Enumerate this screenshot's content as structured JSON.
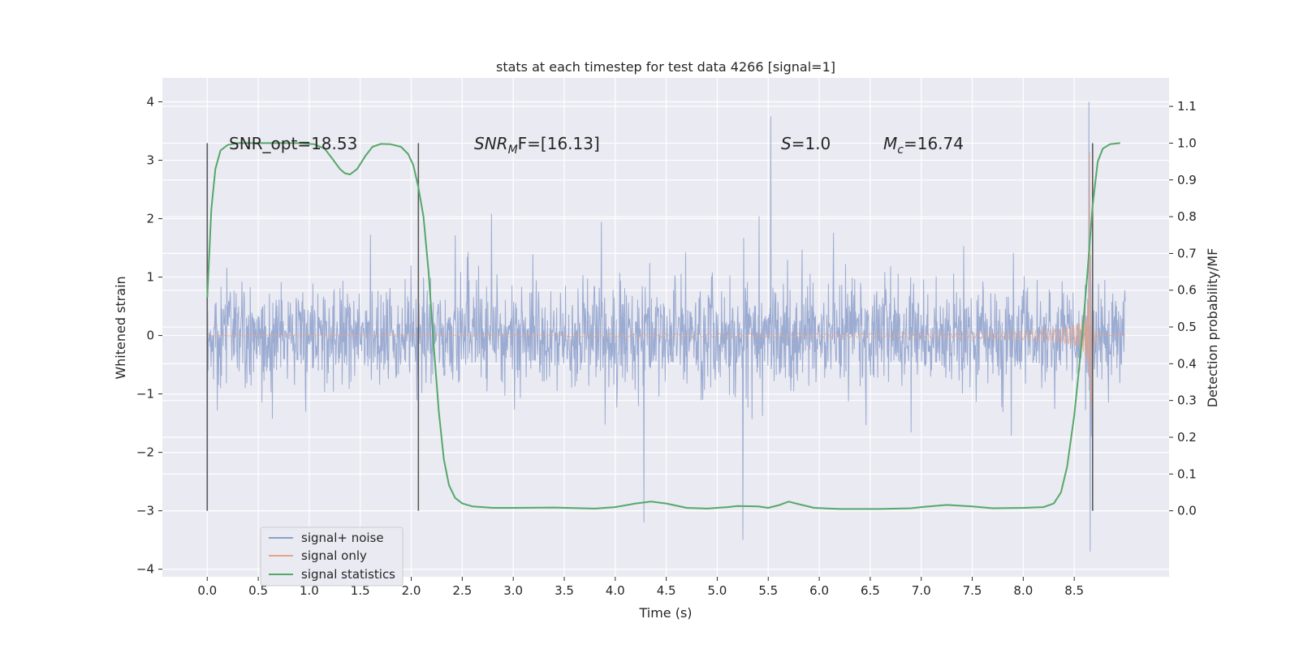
{
  "chart_data": {
    "type": "line",
    "title": "stats at each timestep for test data 4266 [signal=1]",
    "xlabel": "Time (s)",
    "ylabel_left": "Whitened strain",
    "ylabel_right": "Detection probability/MF",
    "xlim": [
      -0.44,
      9.43
    ],
    "ylim_left": [
      -4.13,
      4.41
    ],
    "ylim_right": [
      -0.1795,
      1.1775
    ],
    "x_ticks": [
      0.0,
      0.5,
      1.0,
      1.5,
      2.0,
      2.5,
      3.0,
      3.5,
      4.0,
      4.5,
      5.0,
      5.5,
      6.0,
      6.5,
      7.0,
      7.5,
      8.0,
      8.5
    ],
    "x_tick_labels": [
      "0.0",
      "0.5",
      "1.0",
      "1.5",
      "2.0",
      "2.5",
      "3.0",
      "3.5",
      "4.0",
      "4.5",
      "5.0",
      "5.5",
      "6.0",
      "6.5",
      "7.0",
      "7.5",
      "8.0",
      "8.5"
    ],
    "y_left_ticks": [
      -4,
      -3,
      -2,
      -1,
      0,
      1,
      2,
      3,
      4
    ],
    "y_left_tick_labels": [
      "−4",
      "−3",
      "−2",
      "−1",
      "0",
      "1",
      "2",
      "3",
      "4"
    ],
    "y_right_ticks": [
      0.0,
      0.1,
      0.2,
      0.3,
      0.4,
      0.5,
      0.6,
      0.7,
      0.8,
      0.9,
      1.0,
      1.1
    ],
    "y_right_tick_labels": [
      "0.0",
      "0.1",
      "0.2",
      "0.3",
      "0.4",
      "0.5",
      "0.6",
      "0.7",
      "0.8",
      "0.9",
      "1.0",
      "1.1"
    ],
    "grid": true,
    "legend_position": "bottom-left",
    "series": [
      {
        "name": "signal+ noise",
        "axis": "left",
        "color": "#8da0cb",
        "x_range": [
          0.0,
          9.0
        ],
        "noise_sigma": 0.8,
        "peak_range": [
          -3.7,
          4.0
        ]
      },
      {
        "name": "signal only",
        "axis": "left",
        "color": "#e5a48a",
        "x_range": [
          0.0,
          9.0
        ],
        "merger_time": 8.65,
        "peak_amplitude": 3.2
      },
      {
        "name": "signal statistics",
        "axis": "right",
        "color": "#55a868",
        "points": [
          [
            0.0,
            0.58
          ],
          [
            0.04,
            0.82
          ],
          [
            0.08,
            0.93
          ],
          [
            0.13,
            0.98
          ],
          [
            0.2,
            0.995
          ],
          [
            0.3,
            1.0
          ],
          [
            0.6,
            1.0
          ],
          [
            0.9,
            1.0
          ],
          [
            1.05,
            0.997
          ],
          [
            1.15,
            0.985
          ],
          [
            1.22,
            0.96
          ],
          [
            1.3,
            0.93
          ],
          [
            1.35,
            0.918
          ],
          [
            1.4,
            0.915
          ],
          [
            1.47,
            0.93
          ],
          [
            1.55,
            0.965
          ],
          [
            1.62,
            0.99
          ],
          [
            1.7,
            0.998
          ],
          [
            1.8,
            0.997
          ],
          [
            1.9,
            0.99
          ],
          [
            1.97,
            0.97
          ],
          [
            2.02,
            0.94
          ],
          [
            2.07,
            0.88
          ],
          [
            2.12,
            0.8
          ],
          [
            2.17,
            0.65
          ],
          [
            2.22,
            0.45
          ],
          [
            2.27,
            0.27
          ],
          [
            2.32,
            0.14
          ],
          [
            2.37,
            0.07
          ],
          [
            2.43,
            0.035
          ],
          [
            2.5,
            0.02
          ],
          [
            2.6,
            0.012
          ],
          [
            2.8,
            0.008
          ],
          [
            3.0,
            0.008
          ],
          [
            3.4,
            0.009
          ],
          [
            3.8,
            0.006
          ],
          [
            4.0,
            0.01
          ],
          [
            4.2,
            0.02
          ],
          [
            4.35,
            0.025
          ],
          [
            4.5,
            0.02
          ],
          [
            4.7,
            0.008
          ],
          [
            4.9,
            0.006
          ],
          [
            5.1,
            0.01
          ],
          [
            5.2,
            0.013
          ],
          [
            5.4,
            0.012
          ],
          [
            5.5,
            0.008
          ],
          [
            5.6,
            0.015
          ],
          [
            5.7,
            0.025
          ],
          [
            5.8,
            0.018
          ],
          [
            5.95,
            0.008
          ],
          [
            6.2,
            0.005
          ],
          [
            6.6,
            0.005
          ],
          [
            6.9,
            0.007
          ],
          [
            7.0,
            0.01
          ],
          [
            7.25,
            0.016
          ],
          [
            7.5,
            0.012
          ],
          [
            7.7,
            0.007
          ],
          [
            8.0,
            0.008
          ],
          [
            8.2,
            0.01
          ],
          [
            8.3,
            0.02
          ],
          [
            8.37,
            0.05
          ],
          [
            8.43,
            0.12
          ],
          [
            8.5,
            0.26
          ],
          [
            8.57,
            0.45
          ],
          [
            8.63,
            0.65
          ],
          [
            8.68,
            0.83
          ],
          [
            8.73,
            0.95
          ],
          [
            8.78,
            0.985
          ],
          [
            8.85,
            0.997
          ],
          [
            8.95,
            1.0
          ]
        ]
      }
    ],
    "markers": [
      0.0,
      2.07,
      8.68
    ],
    "marker_y_range_right": [
      0.0,
      1.0
    ],
    "annotations": {
      "snr_opt": "SNR_opt=18.53",
      "snr_mf_prefix": "SNR",
      "snr_mf_sub": "M",
      "snr_mf_suffix": "F=[16.13]",
      "s_var": "S",
      "s_value": "=1.0",
      "mc_var": "M",
      "mc_sub": "c",
      "mc_value": "=16.74"
    }
  }
}
